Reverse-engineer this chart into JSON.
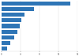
{
  "values": [
    14.5,
    6.8,
    4.9,
    4.2,
    3.8,
    3.3,
    2.7,
    1.8,
    1.2
  ],
  "bar_color": "#2e75b6",
  "background_color": "#ffffff",
  "xlim": [
    0,
    16
  ],
  "bar_height": 0.72,
  "grid_color": "#d9d9d9",
  "tick_color": "#555555"
}
